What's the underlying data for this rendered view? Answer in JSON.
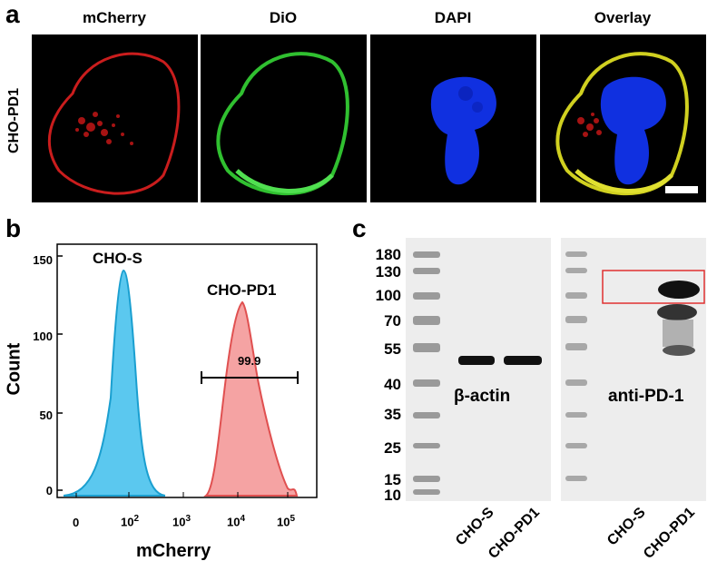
{
  "panel_a": {
    "letter": "a",
    "row_label": "CHO-PD1",
    "channels": [
      "mCherry",
      "DiO",
      "DAPI",
      "Overlay"
    ]
  },
  "panel_b": {
    "letter": "b",
    "x_label": "mCherry",
    "y_label": "Count",
    "y_ticks": [
      "150",
      "100",
      "50",
      "0"
    ],
    "x_ticks": [
      "0",
      "10",
      "10",
      "10",
      "10"
    ],
    "x_exponents": [
      "",
      "2",
      "3",
      "4",
      "5"
    ],
    "label_cho_s": "CHO-S",
    "label_cho_pd1": "CHO-PD1",
    "gate_value": "99.9",
    "colors": {
      "cho_s": "#5bc8ef",
      "cho_s_line": "#1a9fd0",
      "cho_pd1": "#f5a3a3",
      "cho_pd1_line": "#e05050"
    }
  },
  "panel_c": {
    "letter": "c",
    "mw_markers": [
      "180",
      "130",
      "100",
      "70",
      "55",
      "40",
      "35",
      "25",
      "15",
      "10"
    ],
    "blot1_label": "β-actin",
    "blot2_label": "anti-PD-1",
    "lanes_blot1": [
      "CHO-S",
      "CHO-PD1"
    ],
    "lanes_blot2": [
      "CHO-S",
      "CHO-PD1"
    ],
    "highlight_color": "#e03030"
  },
  "chart_data": {
    "type": "area",
    "xlabel": "mCherry",
    "ylabel": "Count",
    "ylim": [
      0,
      150
    ],
    "x_scale": "log",
    "series": [
      {
        "name": "CHO-S",
        "x": [
          30,
          50,
          70,
          80,
          100,
          130,
          200
        ],
        "values": [
          10,
          60,
          120,
          138,
          110,
          40,
          0
        ]
      },
      {
        "name": "CHO-PD1",
        "x": [
          3000,
          8000,
          15000,
          25000,
          40000,
          80000,
          200000
        ],
        "values": [
          5,
          40,
          90,
          118,
          95,
          50,
          5
        ]
      }
    ],
    "gate_value": "99.9"
  }
}
